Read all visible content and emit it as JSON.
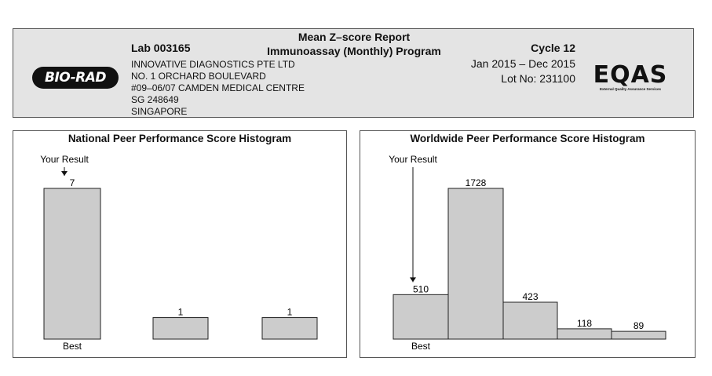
{
  "header": {
    "report_title": "Mean Z–score Report",
    "program": "Immunoassay (Monthly) Program",
    "lab": "Lab 003165",
    "address_lines": [
      "INNOVATIVE DIAGNOSTICS PTE LTD",
      "NO. 1 ORCHARD BOULEVARD",
      "#09–06/07 CAMDEN MEDICAL CENTRE",
      "SG 248649",
      "SINGAPORE"
    ],
    "cycle": "Cycle 12",
    "period": "Jan 2015 – Dec 2015",
    "lot": "Lot No: 231100",
    "logo_left": "BIO-RAD",
    "logo_right": "EQAS",
    "logo_right_sub": "External Quality Assurance Services"
  },
  "chart_data": [
    {
      "type": "bar",
      "title": "National Peer Performance Score Histogram",
      "values": [
        7,
        1,
        1
      ],
      "your_result_label": "Your Result",
      "your_result_index": 0,
      "best_label": "Best",
      "bar_color": "#cccccc"
    },
    {
      "type": "bar",
      "title": "Worldwide Peer Performance Score Histogram",
      "values": [
        510,
        1728,
        423,
        118,
        89
      ],
      "your_result_label": "Your Result",
      "your_result_index": 0,
      "best_label": "Best",
      "bar_color": "#cccccc"
    }
  ]
}
